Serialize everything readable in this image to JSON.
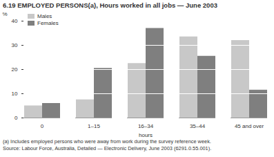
{
  "chart_data": {
    "type": "bar",
    "title": "6.19 EMPLOYED PERSONS(a), Hours worked in all jobs — June 2003",
    "x_label": "hours",
    "y_label": "%",
    "categories": [
      "0",
      "1–15",
      "16–34",
      "35–44",
      "45 and over"
    ],
    "series": [
      {
        "name": "Males",
        "color": "#c8c8c8",
        "values": [
          5,
          7.5,
          22.5,
          33.5,
          32
        ]
      },
      {
        "name": "Females",
        "color": "#7f7f7f",
        "values": [
          6,
          20.5,
          37,
          25.5,
          11.5
        ]
      }
    ],
    "ylim": [
      0,
      40
    ],
    "yticks": [
      0,
      10,
      20,
      30,
      40
    ],
    "grid": true,
    "legend": "top-left",
    "annotations": [
      "(a) Includes employed persons who were away from work during the survey reference week.",
      "Source: Labour Force, Australia, Detailed — Electronic Delivery, June 2003 (6291.0.55.001)."
    ]
  }
}
